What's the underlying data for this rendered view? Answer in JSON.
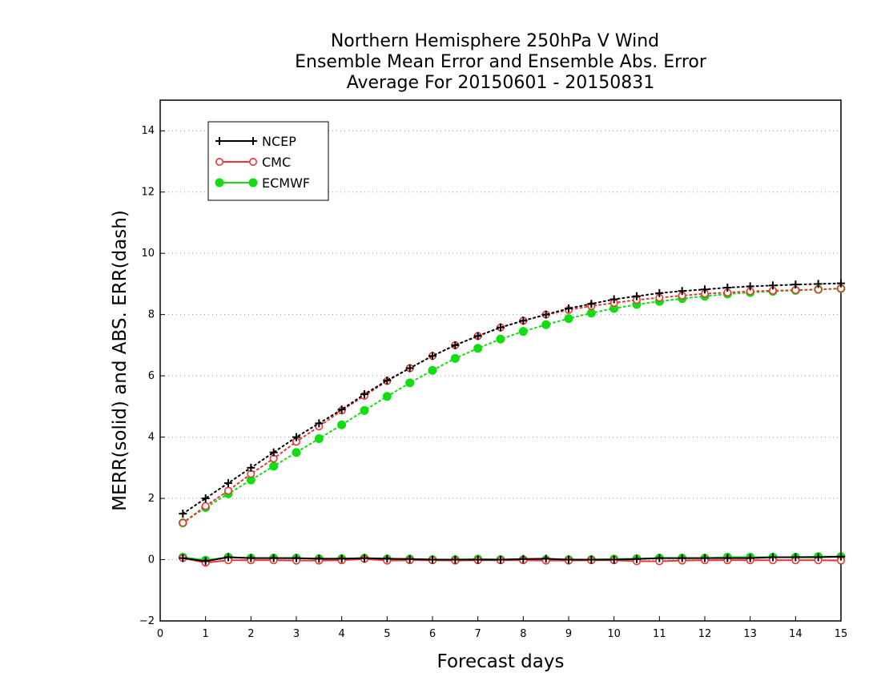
{
  "chart_data": {
    "type": "line",
    "title": [
      "Northern Hemisphere 250hPa V Wind",
      "Ensemble Mean Error and Ensemble Abs. Error",
      "Average For 20150601 - 20150831"
    ],
    "xlabel": "Forecast days",
    "ylabel": "MERR(solid) and ABS. ERR(dash)",
    "xlim": [
      0,
      15
    ],
    "ylim": [
      -2,
      15
    ],
    "xticks": [
      0,
      1,
      2,
      3,
      4,
      5,
      6,
      7,
      8,
      9,
      10,
      11,
      12,
      13,
      14,
      15
    ],
    "yticks": [
      -2,
      0,
      2,
      4,
      6,
      8,
      10,
      12,
      14
    ],
    "grid": "horizontal dotted",
    "legend_position": "top-left",
    "x": [
      0.5,
      1,
      1.5,
      2,
      2.5,
      3,
      3.5,
      4,
      4.5,
      5,
      5.5,
      6,
      6.5,
      7,
      7.5,
      8,
      8.5,
      9,
      9.5,
      10,
      10.5,
      11,
      11.5,
      12,
      12.5,
      13,
      13.5,
      14,
      14.5,
      15
    ],
    "series": [
      {
        "name": "NCEP",
        "color": "#000000",
        "marker": "plus",
        "abs_err": [
          1.5,
          2.0,
          2.5,
          3.0,
          3.5,
          4.0,
          4.45,
          4.9,
          5.4,
          5.85,
          6.25,
          6.65,
          7.0,
          7.3,
          7.58,
          7.8,
          8.0,
          8.2,
          8.35,
          8.5,
          8.6,
          8.7,
          8.77,
          8.82,
          8.88,
          8.92,
          8.95,
          8.98,
          9.0,
          9.02
        ],
        "mean_err": [
          0.05,
          -0.05,
          0.08,
          0.05,
          0.05,
          0.05,
          0.03,
          0.03,
          0.05,
          0.03,
          0.02,
          0.0,
          0.0,
          0.0,
          0.0,
          0.02,
          0.03,
          0.0,
          0.0,
          0.0,
          0.02,
          0.05,
          0.05,
          0.05,
          0.05,
          0.05,
          0.08,
          0.08,
          0.08,
          0.1
        ]
      },
      {
        "name": "CMC",
        "color": "#ee3333",
        "marker": "open-circle",
        "abs_err": [
          1.2,
          1.75,
          2.25,
          2.8,
          3.3,
          3.85,
          4.35,
          4.87,
          5.35,
          5.83,
          6.25,
          6.65,
          7.0,
          7.3,
          7.58,
          7.8,
          8.0,
          8.15,
          8.28,
          8.38,
          8.48,
          8.55,
          8.62,
          8.68,
          8.72,
          8.76,
          8.78,
          8.8,
          8.82,
          8.85
        ],
        "mean_err": [
          0.05,
          -0.1,
          -0.02,
          -0.02,
          -0.02,
          -0.03,
          -0.03,
          -0.02,
          0.02,
          -0.03,
          -0.02,
          -0.02,
          -0.03,
          -0.02,
          -0.02,
          -0.02,
          -0.03,
          -0.03,
          -0.02,
          -0.02,
          -0.05,
          -0.05,
          -0.03,
          -0.02,
          -0.02,
          -0.02,
          -0.02,
          -0.02,
          -0.02,
          -0.03
        ]
      },
      {
        "name": "ECMWF",
        "color": "#11dd11",
        "marker": "filled-circle",
        "abs_err": [
          1.2,
          1.7,
          2.15,
          2.6,
          3.05,
          3.5,
          3.95,
          4.4,
          4.87,
          5.33,
          5.77,
          6.18,
          6.57,
          6.9,
          7.2,
          7.45,
          7.67,
          7.87,
          8.05,
          8.2,
          8.33,
          8.43,
          8.52,
          8.6,
          8.67,
          8.72,
          8.76,
          8.79,
          8.82,
          8.85
        ],
        "mean_err": [
          0.08,
          -0.02,
          0.08,
          0.05,
          0.05,
          0.05,
          0.03,
          0.03,
          0.05,
          0.02,
          0.02,
          0.0,
          0.0,
          0.02,
          0.0,
          0.0,
          0.0,
          0.0,
          0.0,
          0.02,
          0.03,
          0.05,
          0.05,
          0.05,
          0.08,
          0.08,
          0.08,
          0.08,
          0.1,
          0.1
        ]
      }
    ]
  }
}
